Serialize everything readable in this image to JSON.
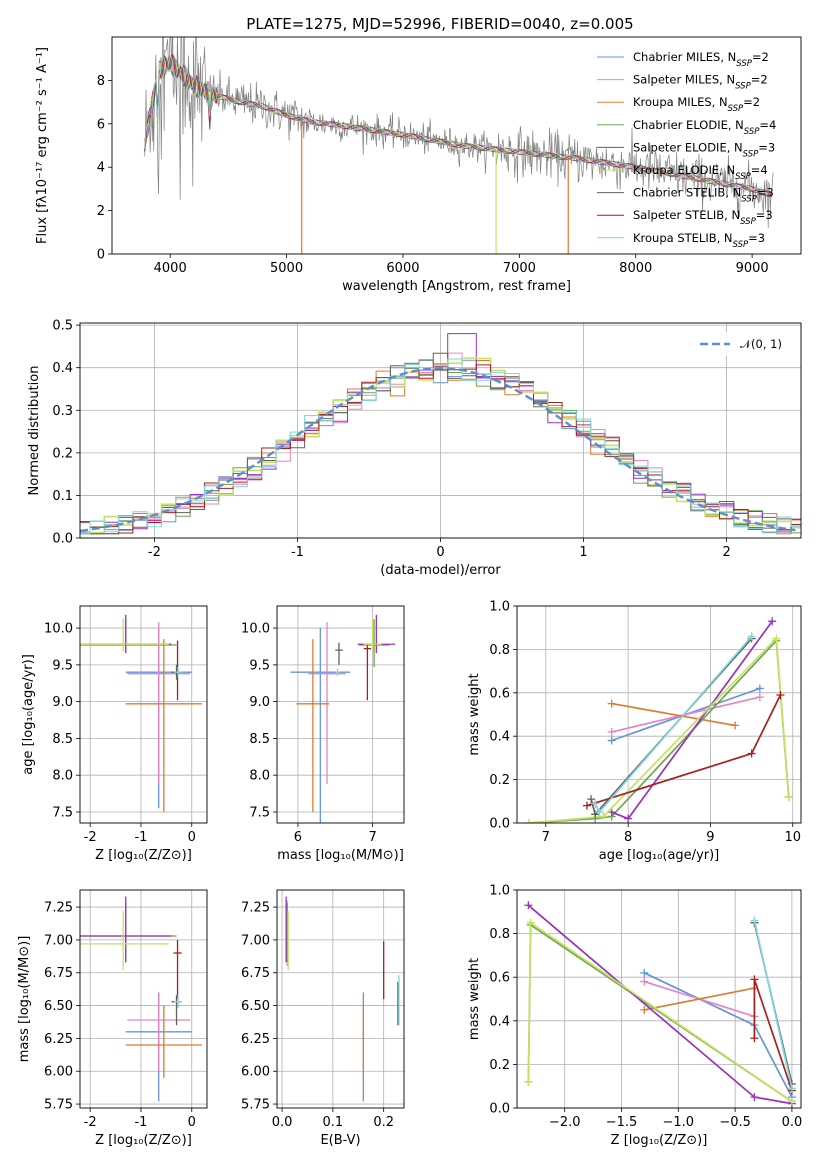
{
  "figure_title": "PLATE=1275, MJD=52996, FIBERID=0040, z=0.005",
  "colors": {
    "blue": "#6495dc",
    "pink": "#e882c8",
    "orange": "#e07a2e",
    "green": "#6aa84f",
    "purple": "#9b30c0",
    "yellowgreen": "#c6e060",
    "gray": "#808080",
    "darkred": "#aa1e1e",
    "cyan": "#7fd6dc",
    "normal": "#5b8fd0"
  },
  "chart_data": [
    {
      "id": "spectrum",
      "type": "line",
      "xlabel": "wavelength [Angstrom, rest frame]",
      "ylabel": "Flux [fλ10⁻¹⁷ erg cm⁻² s⁻¹ A⁻¹]",
      "xlim": [
        3500,
        9420
      ],
      "ylim": [
        0,
        10
      ],
      "xticks": [
        4000,
        5000,
        6000,
        7000,
        8000,
        9000
      ],
      "yticks": [
        0,
        2,
        4,
        6,
        8
      ],
      "continuum": {
        "x": [
          3780,
          3900,
          4000,
          4100,
          4200,
          4300,
          4400,
          4600,
          4800,
          5000,
          5200,
          5500,
          6000,
          6500,
          7000,
          7500,
          8000,
          8500,
          9000,
          9180
        ],
        "y": [
          5.0,
          8.5,
          8.8,
          8.3,
          7.8,
          7.5,
          7.3,
          7.0,
          6.8,
          6.4,
          6.1,
          5.9,
          5.5,
          5.0,
          4.7,
          4.4,
          4.0,
          3.5,
          3.0,
          2.7
        ]
      },
      "legend": [
        {
          "label": "Chabrier MILES, N",
          "sub": "SSP",
          "n": "=2",
          "color": "#6495dc"
        },
        {
          "label": "Salpeter MILES, N",
          "sub": "SSP",
          "n": "=2",
          "color": "#e882c8"
        },
        {
          "label": "Kroupa MILES, N",
          "sub": "SSP",
          "n": "=2",
          "color": "#e07a2e"
        },
        {
          "label": "Chabrier ELODIE, N",
          "sub": "SSP",
          "n": "=4",
          "color": "#6aa84f"
        },
        {
          "label": "Salpeter ELODIE, N",
          "sub": "SSP",
          "n": "=3",
          "color": "#9b30c0"
        },
        {
          "label": "Kroupa ELODIE, N",
          "sub": "SSP",
          "n": "=4",
          "color": "#c6e060"
        },
        {
          "label": "Chabrier STELIB, N",
          "sub": "SSP",
          "n": "=3",
          "color": "#606060"
        },
        {
          "label": "Salpeter STELIB, N",
          "sub": "SSP",
          "n": "=3",
          "color": "#aa1e1e"
        },
        {
          "label": "Kroupa STELIB, N",
          "sub": "SSP",
          "n": "=3",
          "color": "#7fd6dc"
        }
      ]
    },
    {
      "id": "residuals",
      "type": "histogram",
      "xlabel": "(data-model)/error",
      "ylabel": "Normed distribution",
      "xlim": [
        -2.52,
        2.52
      ],
      "ylim": [
        0,
        0.505
      ],
      "xticks": [
        -2,
        -1,
        0,
        1,
        2
      ],
      "yticks": [
        0.0,
        0.1,
        0.2,
        0.3,
        0.4,
        0.5
      ],
      "legend": "𝒩(0, 1)",
      "bin_width": 0.1
    },
    {
      "id": "age-vs-Z",
      "type": "errorbar",
      "xlabel": "Z [log₁₀(Z/Z⊙)]",
      "ylabel": "age  [log₁₀(age/yr)]",
      "xlim": [
        -2.2,
        0.3
      ],
      "ylim": [
        7.35,
        10.3
      ],
      "xticks": [
        -2,
        -1,
        0
      ],
      "yticks": [
        7.5,
        8.0,
        8.5,
        9.0,
        9.5,
        10.0
      ],
      "points": [
        {
          "x": -0.65,
          "xerr": 0.65,
          "y": 9.4,
          "yerr": [
            1.85,
            0.6
          ],
          "color": "#6495dc"
        },
        {
          "x": -0.65,
          "xerr": 0.62,
          "y": 9.38,
          "yerr": [
            1.5,
            0.7
          ],
          "color": "#e882c8"
        },
        {
          "x": -0.55,
          "xerr": 0.75,
          "y": 8.97,
          "yerr": [
            1.47,
            0.88
          ],
          "color": "#e07a2e"
        },
        {
          "x": -1.3,
          "xerr": 1.0,
          "y": 9.77,
          "yerr": [
            0.1,
            0.35
          ],
          "color": "#6aa84f"
        },
        {
          "x": -1.3,
          "xerr": 0.9,
          "y": 9.78,
          "yerr": [
            0.12,
            0.4
          ],
          "color": "#9b30c0"
        },
        {
          "x": -1.35,
          "xerr": 0.9,
          "y": 9.78,
          "yerr": [
            0.1,
            0.35
          ],
          "color": "#c6e060"
        },
        {
          "x": -0.3,
          "xerr": 0.1,
          "y": 9.4,
          "yerr": [
            0.1,
            0.1
          ],
          "color": "#606060"
        },
        {
          "x": -0.28,
          "xerr": 0.08,
          "y": 9.4,
          "yerr": [
            0.38,
            0.43
          ],
          "color": "#aa1e1e"
        },
        {
          "x": -0.27,
          "xerr": 0.08,
          "y": 9.4,
          "yerr": [
            0.08,
            0.08
          ],
          "color": "#7fd6dc"
        }
      ]
    },
    {
      "id": "age-vs-mass",
      "type": "errorbar",
      "xlabel": "mass [log₁₀(M/M⊙)]",
      "ylabel": "",
      "xlim": [
        5.72,
        7.42
      ],
      "ylim": [
        7.35,
        10.3
      ],
      "xticks": [
        6,
        7
      ],
      "yticks": [
        7.5,
        8.0,
        8.5,
        9.0,
        9.5,
        10.0
      ],
      "points": [
        {
          "x": 6.3,
          "xerr": 0.4,
          "y": 9.4,
          "yerr": [
            2.05,
            0.6
          ],
          "color": "#6495dc"
        },
        {
          "x": 6.39,
          "xerr": 0.25,
          "y": 9.38,
          "yerr": [
            1.5,
            0.7
          ],
          "color": "#e882c8"
        },
        {
          "x": 6.2,
          "xerr": 0.22,
          "y": 8.97,
          "yerr": [
            1.47,
            0.88
          ],
          "color": "#e07a2e"
        },
        {
          "x": 7.02,
          "xerr": 0.2,
          "y": 9.77,
          "yerr": [
            0.3,
            0.35
          ],
          "color": "#6aa84f"
        },
        {
          "x": 7.05,
          "xerr": 0.25,
          "y": 9.78,
          "yerr": [
            0.12,
            0.4
          ],
          "color": "#9b30c0"
        },
        {
          "x": 7.0,
          "xerr": 0.12,
          "y": 9.78,
          "yerr": [
            0.1,
            0.35
          ],
          "color": "#c6e060"
        },
        {
          "x": 6.55,
          "xerr": 0.05,
          "y": 9.7,
          "yerr": [
            0.2,
            0.1
          ],
          "color": "#606060"
        },
        {
          "x": 6.93,
          "xerr": 0.05,
          "y": 9.72,
          "yerr": [
            0.7,
            0.05
          ],
          "color": "#aa1e1e"
        },
        {
          "x": 6.53,
          "xerr": 0.03,
          "y": 9.4,
          "yerr": [
            0.05,
            0.05
          ],
          "color": "#7fd6dc"
        }
      ]
    },
    {
      "id": "weight-vs-age",
      "type": "line",
      "xlabel": "age  [log₁₀(age/yr)]",
      "ylabel": "mass weight",
      "xlim": [
        6.65,
        10.1
      ],
      "ylim": [
        0,
        1.0
      ],
      "xticks": [
        7,
        8,
        9,
        10
      ],
      "yticks": [
        0.0,
        0.2,
        0.4,
        0.6,
        0.8,
        1.0
      ],
      "series": [
        {
          "color": "#6495dc",
          "x": [
            7.8,
            9.6
          ],
          "y": [
            0.38,
            0.62
          ]
        },
        {
          "color": "#e882c8",
          "x": [
            7.8,
            9.6
          ],
          "y": [
            0.42,
            0.58
          ]
        },
        {
          "color": "#e07a2e",
          "x": [
            7.8,
            9.3
          ],
          "y": [
            0.55,
            0.45
          ]
        },
        {
          "color": "#6aa84f",
          "x": [
            6.8,
            7.6,
            7.8,
            9.8,
            9.95
          ],
          "y": [
            0.0,
            0.02,
            0.03,
            0.84,
            0.12
          ]
        },
        {
          "color": "#9b30c0",
          "x": [
            7.8,
            8.0,
            9.75
          ],
          "y": [
            0.05,
            0.02,
            0.93
          ]
        },
        {
          "color": "#c6e060",
          "x": [
            6.8,
            7.7,
            9.8,
            9.95
          ],
          "y": [
            0.0,
            0.03,
            0.85,
            0.12
          ]
        },
        {
          "color": "#606060",
          "x": [
            7.55,
            7.6,
            9.5
          ],
          "y": [
            0.11,
            0.04,
            0.85
          ]
        },
        {
          "color": "#aa1e1e",
          "x": [
            7.5,
            9.5,
            9.85
          ],
          "y": [
            0.08,
            0.32,
            0.59
          ]
        },
        {
          "color": "#7fd6dc",
          "x": [
            7.6,
            7.65,
            9.5
          ],
          "y": [
            0.09,
            0.05,
            0.86
          ]
        }
      ]
    },
    {
      "id": "mass-vs-Z",
      "type": "errorbar",
      "xlabel": "Z [log₁₀(Z/Z⊙)]",
      "ylabel": "mass [log₁₀(M/M⊙)]",
      "xlim": [
        -2.2,
        0.3
      ],
      "ylim": [
        5.72,
        7.38
      ],
      "xticks": [
        -2,
        -1,
        0
      ],
      "yticks": [
        5.75,
        6.0,
        6.25,
        6.5,
        6.75,
        7.0,
        7.25
      ],
      "points": [
        {
          "x": -0.65,
          "xerr": 0.65,
          "y": 6.3,
          "yerr": [
            0.53,
            0.3
          ],
          "color": "#6495dc"
        },
        {
          "x": -0.65,
          "xerr": 0.62,
          "y": 6.39,
          "yerr": [
            0.39,
            0.2
          ],
          "color": "#e882c8"
        },
        {
          "x": -0.55,
          "xerr": 0.75,
          "y": 6.2,
          "yerr": [
            0.25,
            0.3
          ],
          "color": "#e07a2e"
        },
        {
          "x": -1.3,
          "xerr": 1.0,
          "y": 7.03,
          "yerr": [
            0.2,
            0.25
          ],
          "color": "#6aa84f"
        },
        {
          "x": -1.3,
          "xerr": 0.9,
          "y": 7.03,
          "yerr": [
            0.2,
            0.3
          ],
          "color": "#9b30c0"
        },
        {
          "x": -1.35,
          "xerr": 0.9,
          "y": 6.97,
          "yerr": [
            0.2,
            0.25
          ],
          "color": "#c6e060"
        },
        {
          "x": -0.3,
          "xerr": 0.1,
          "y": 6.53,
          "yerr": [
            0.18,
            0.05
          ],
          "color": "#606060"
        },
        {
          "x": -0.28,
          "xerr": 0.08,
          "y": 6.9,
          "yerr": [
            0.35,
            0.1
          ],
          "color": "#aa1e1e"
        },
        {
          "x": -0.27,
          "xerr": 0.08,
          "y": 6.53,
          "yerr": [
            0.05,
            0.05
          ],
          "color": "#7fd6dc"
        }
      ]
    },
    {
      "id": "mass-vs-EBV",
      "type": "errorbar",
      "xlabel": "E(B-V)",
      "ylabel": "",
      "xlim": [
        -0.01,
        0.24
      ],
      "ylim": [
        5.72,
        7.38
      ],
      "xticks": [
        0.0,
        0.1,
        0.2
      ],
      "xtick_labels": [
        "0.0",
        "0.1",
        "0.2"
      ],
      "yticks": [
        5.75,
        6.0,
        6.25,
        6.5,
        6.75,
        7.0,
        7.25
      ],
      "points": [
        {
          "x": 0.16,
          "xerr": 0.0,
          "y": 6.3,
          "yerr": [
            0.53,
            0.3
          ],
          "color": "#6495dc"
        },
        {
          "x": 0.01,
          "xerr": 0.0,
          "y": 6.9,
          "yerr": [
            0.1,
            0.4
          ],
          "color": "#e882c8"
        },
        {
          "x": 0.16,
          "xerr": 0.0,
          "y": 6.2,
          "yerr": [
            0.25,
            0.3
          ],
          "color": "#e07a2e"
        },
        {
          "x": 0.01,
          "xerr": 0.0,
          "y": 7.03,
          "yerr": [
            0.2,
            0.25
          ],
          "color": "#6aa84f"
        },
        {
          "x": 0.008,
          "xerr": 0.0,
          "y": 7.03,
          "yerr": [
            0.2,
            0.3
          ],
          "color": "#9b30c0"
        },
        {
          "x": 0.012,
          "xerr": 0.0,
          "y": 6.97,
          "yerr": [
            0.2,
            0.25
          ],
          "color": "#c6e060"
        },
        {
          "x": 0.228,
          "xerr": 0.0,
          "y": 6.53,
          "yerr": [
            0.18,
            0.15
          ],
          "color": "#606060"
        },
        {
          "x": 0.2,
          "xerr": 0.0,
          "y": 6.77,
          "yerr": [
            0.22,
            0.22
          ],
          "color": "#aa1e1e"
        },
        {
          "x": 0.23,
          "xerr": 0.0,
          "y": 6.53,
          "yerr": [
            0.18,
            0.2
          ],
          "color": "#7fd6dc"
        }
      ]
    },
    {
      "id": "weight-vs-Z",
      "type": "line",
      "xlabel": "Z [log₁₀(Z/Z⊙)]",
      "ylabel": "mass weight",
      "xlim": [
        -2.42,
        0.08
      ],
      "ylim": [
        0,
        1.0
      ],
      "xticks": [
        -2.0,
        -1.5,
        -1.0,
        -0.5,
        0.0
      ],
      "xtick_labels": [
        "−2.0",
        "−1.5",
        "−1.0",
        "−0.5",
        "0.0"
      ],
      "yticks": [
        0.0,
        0.2,
        0.4,
        0.6,
        0.8,
        1.0
      ],
      "series": [
        {
          "color": "#6495dc",
          "x": [
            -1.3,
            -0.33,
            0.0
          ],
          "y": [
            0.62,
            0.38,
            0.05
          ]
        },
        {
          "color": "#e882c8",
          "x": [
            -1.3,
            -0.33
          ],
          "y": [
            0.58,
            0.42
          ]
        },
        {
          "color": "#e07a2e",
          "x": [
            -1.3,
            -0.33
          ],
          "y": [
            0.45,
            0.55
          ]
        },
        {
          "color": "#6aa84f",
          "x": [
            -2.32,
            -2.3,
            0.0
          ],
          "y": [
            0.12,
            0.84,
            0.03
          ]
        },
        {
          "color": "#9b30c0",
          "x": [
            -2.32,
            -0.33,
            0.0
          ],
          "y": [
            0.93,
            0.05,
            0.02
          ]
        },
        {
          "color": "#c6e060",
          "x": [
            -2.32,
            -2.3,
            0.0
          ],
          "y": [
            0.12,
            0.85,
            0.03
          ]
        },
        {
          "color": "#606060",
          "x": [
            -0.33,
            0.0
          ],
          "y": [
            0.85,
            0.11
          ]
        },
        {
          "color": "#aa1e1e",
          "x": [
            -0.33,
            -0.33,
            0.0
          ],
          "y": [
            0.32,
            0.59,
            0.08
          ]
        },
        {
          "color": "#7fd6dc",
          "x": [
            -0.33,
            0.0
          ],
          "y": [
            0.86,
            0.09
          ]
        }
      ]
    }
  ]
}
